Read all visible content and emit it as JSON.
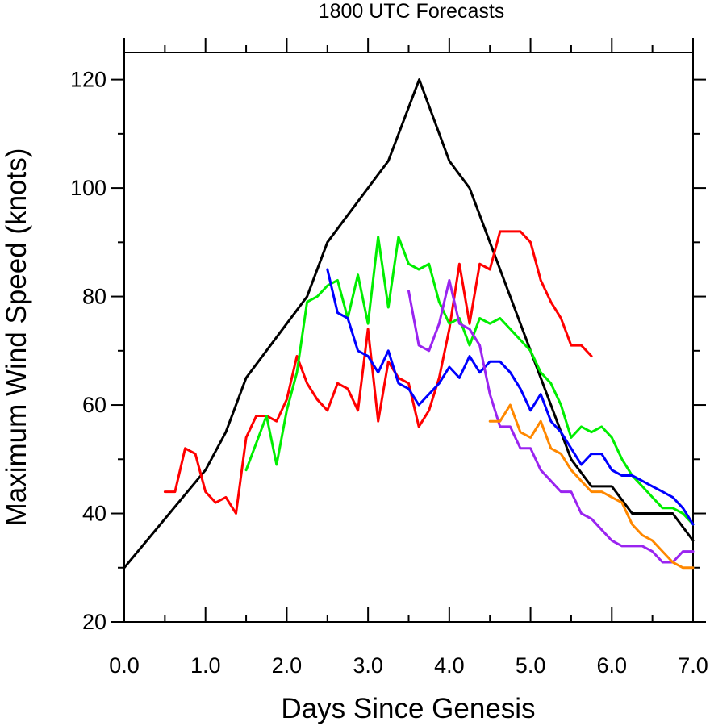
{
  "chart_data": {
    "type": "line",
    "title": "1800 UTC Forecasts",
    "xlabel": "Days Since Genesis",
    "ylabel": "Maximum Wind Speed (knots)",
    "xlim": [
      0,
      7
    ],
    "ylim": [
      20,
      125
    ],
    "xticks": [
      0,
      1,
      2,
      3,
      4,
      5,
      6,
      7
    ],
    "xtick_labels": [
      "0.0",
      "1.0",
      "2.0",
      "3.0",
      "4.0",
      "5.0",
      "6.0",
      "7.0"
    ],
    "yticks": [
      20,
      40,
      60,
      80,
      100,
      120
    ],
    "ytick_labels": [
      "20",
      "40",
      "60",
      "80",
      "100",
      "120"
    ],
    "grid": false,
    "series": [
      {
        "color": "#000000",
        "points": [
          [
            0,
            30
          ],
          [
            1.0,
            48
          ],
          [
            1.25,
            55
          ],
          [
            1.5,
            65
          ],
          [
            2.0,
            75
          ],
          [
            2.25,
            80
          ],
          [
            2.5,
            90
          ],
          [
            3.0,
            100
          ],
          [
            3.25,
            105
          ],
          [
            3.63,
            120
          ],
          [
            4.0,
            105
          ],
          [
            4.25,
            100
          ],
          [
            4.5,
            90
          ],
          [
            4.75,
            80
          ],
          [
            5.0,
            70
          ],
          [
            5.25,
            60
          ],
          [
            5.5,
            50
          ],
          [
            5.75,
            45
          ],
          [
            6.0,
            45
          ],
          [
            6.25,
            40
          ],
          [
            6.5,
            40
          ],
          [
            6.75,
            40
          ],
          [
            7.0,
            35
          ]
        ]
      },
      {
        "color": "#ff0000",
        "points": [
          [
            0.5,
            44
          ],
          [
            0.625,
            44
          ],
          [
            0.75,
            52
          ],
          [
            0.875,
            51
          ],
          [
            1.0,
            44
          ],
          [
            1.125,
            42
          ],
          [
            1.25,
            43
          ],
          [
            1.375,
            40
          ],
          [
            1.5,
            54
          ],
          [
            1.625,
            58
          ],
          [
            1.75,
            58
          ],
          [
            1.875,
            57
          ],
          [
            2.0,
            61
          ],
          [
            2.125,
            69
          ],
          [
            2.25,
            64
          ],
          [
            2.375,
            61
          ],
          [
            2.5,
            59
          ],
          [
            2.625,
            64
          ],
          [
            2.75,
            63
          ],
          [
            2.875,
            59
          ],
          [
            3.0,
            74
          ],
          [
            3.125,
            57
          ],
          [
            3.25,
            68
          ],
          [
            3.375,
            65
          ],
          [
            3.5,
            64
          ],
          [
            3.625,
            56
          ],
          [
            3.75,
            59
          ],
          [
            3.875,
            65
          ],
          [
            4.0,
            74
          ],
          [
            4.125,
            86
          ],
          [
            4.25,
            75
          ],
          [
            4.375,
            86
          ],
          [
            4.5,
            85
          ],
          [
            4.625,
            92
          ],
          [
            4.75,
            92
          ],
          [
            4.875,
            92
          ],
          [
            5.0,
            90
          ],
          [
            5.125,
            83
          ],
          [
            5.25,
            79
          ],
          [
            5.375,
            76
          ],
          [
            5.5,
            71
          ],
          [
            5.625,
            71
          ],
          [
            5.75,
            69
          ]
        ]
      },
      {
        "color": "#00ee00",
        "points": [
          [
            1.5,
            48
          ],
          [
            1.625,
            53
          ],
          [
            1.75,
            58
          ],
          [
            1.875,
            49
          ],
          [
            2.0,
            59
          ],
          [
            2.125,
            66
          ],
          [
            2.25,
            79
          ],
          [
            2.375,
            80
          ],
          [
            2.5,
            82
          ],
          [
            2.625,
            83
          ],
          [
            2.75,
            76
          ],
          [
            2.875,
            84
          ],
          [
            3.0,
            75
          ],
          [
            3.125,
            91
          ],
          [
            3.25,
            78
          ],
          [
            3.375,
            91
          ],
          [
            3.5,
            86
          ],
          [
            3.625,
            85
          ],
          [
            3.75,
            86
          ],
          [
            3.875,
            79
          ],
          [
            4.0,
            75
          ],
          [
            4.125,
            76
          ],
          [
            4.25,
            71
          ],
          [
            4.375,
            76
          ],
          [
            4.5,
            75
          ],
          [
            4.625,
            76
          ],
          [
            4.75,
            74
          ],
          [
            4.875,
            72
          ],
          [
            5.0,
            70
          ],
          [
            5.125,
            66
          ],
          [
            5.25,
            64
          ],
          [
            5.375,
            60
          ],
          [
            5.5,
            54
          ],
          [
            5.625,
            56
          ],
          [
            5.75,
            55
          ],
          [
            5.875,
            56
          ],
          [
            6.0,
            54
          ],
          [
            6.125,
            50
          ],
          [
            6.25,
            47
          ],
          [
            6.375,
            45
          ],
          [
            6.5,
            43
          ],
          [
            6.625,
            41
          ],
          [
            6.75,
            41
          ],
          [
            6.875,
            40
          ],
          [
            7.0,
            38
          ]
        ]
      },
      {
        "color": "#0000ff",
        "points": [
          [
            2.5,
            85
          ],
          [
            2.625,
            77
          ],
          [
            2.75,
            76
          ],
          [
            2.875,
            70
          ],
          [
            3.0,
            69
          ],
          [
            3.125,
            66
          ],
          [
            3.25,
            70
          ],
          [
            3.375,
            64
          ],
          [
            3.5,
            63
          ],
          [
            3.625,
            60
          ],
          [
            3.75,
            62
          ],
          [
            3.875,
            64
          ],
          [
            4.0,
            67
          ],
          [
            4.125,
            65
          ],
          [
            4.25,
            69
          ],
          [
            4.375,
            66
          ],
          [
            4.5,
            68
          ],
          [
            4.625,
            68
          ],
          [
            4.75,
            66
          ],
          [
            4.875,
            63
          ],
          [
            5.0,
            59
          ],
          [
            5.125,
            62
          ],
          [
            5.25,
            57
          ],
          [
            5.375,
            55
          ],
          [
            5.5,
            52
          ],
          [
            5.625,
            49
          ],
          [
            5.75,
            51
          ],
          [
            5.875,
            51
          ],
          [
            6.0,
            48
          ],
          [
            6.125,
            47
          ],
          [
            6.25,
            47
          ],
          [
            6.375,
            46
          ],
          [
            6.5,
            45
          ],
          [
            6.625,
            44
          ],
          [
            6.75,
            43
          ],
          [
            6.875,
            41
          ],
          [
            7.0,
            38
          ]
        ]
      },
      {
        "color": "#9a24f0",
        "points": [
          [
            3.5,
            81
          ],
          [
            3.625,
            71
          ],
          [
            3.75,
            70
          ],
          [
            3.875,
            75
          ],
          [
            4.0,
            83
          ],
          [
            4.125,
            75
          ],
          [
            4.25,
            74
          ],
          [
            4.375,
            71
          ],
          [
            4.5,
            62
          ],
          [
            4.625,
            56
          ],
          [
            4.75,
            56
          ],
          [
            4.875,
            52
          ],
          [
            5.0,
            52
          ],
          [
            5.125,
            48
          ],
          [
            5.25,
            46
          ],
          [
            5.375,
            44
          ],
          [
            5.5,
            44
          ],
          [
            5.625,
            40
          ],
          [
            5.75,
            39
          ],
          [
            5.875,
            37
          ],
          [
            6.0,
            35
          ],
          [
            6.125,
            34
          ],
          [
            6.25,
            34
          ],
          [
            6.375,
            34
          ],
          [
            6.5,
            33
          ],
          [
            6.625,
            31
          ],
          [
            6.75,
            31
          ],
          [
            6.875,
            33
          ],
          [
            7.0,
            33
          ]
        ]
      },
      {
        "color": "#ff8800",
        "points": [
          [
            4.5,
            57
          ],
          [
            4.625,
            57
          ],
          [
            4.75,
            60
          ],
          [
            4.875,
            55
          ],
          [
            5.0,
            54
          ],
          [
            5.125,
            57
          ],
          [
            5.25,
            52
          ],
          [
            5.375,
            51
          ],
          [
            5.5,
            48
          ],
          [
            5.625,
            46
          ],
          [
            5.75,
            44
          ],
          [
            5.875,
            44
          ],
          [
            6.0,
            43
          ],
          [
            6.125,
            42
          ],
          [
            6.25,
            38
          ],
          [
            6.375,
            36
          ],
          [
            6.5,
            35
          ],
          [
            6.625,
            33
          ],
          [
            6.75,
            31
          ],
          [
            6.875,
            30
          ],
          [
            7.0,
            30
          ]
        ]
      }
    ]
  }
}
